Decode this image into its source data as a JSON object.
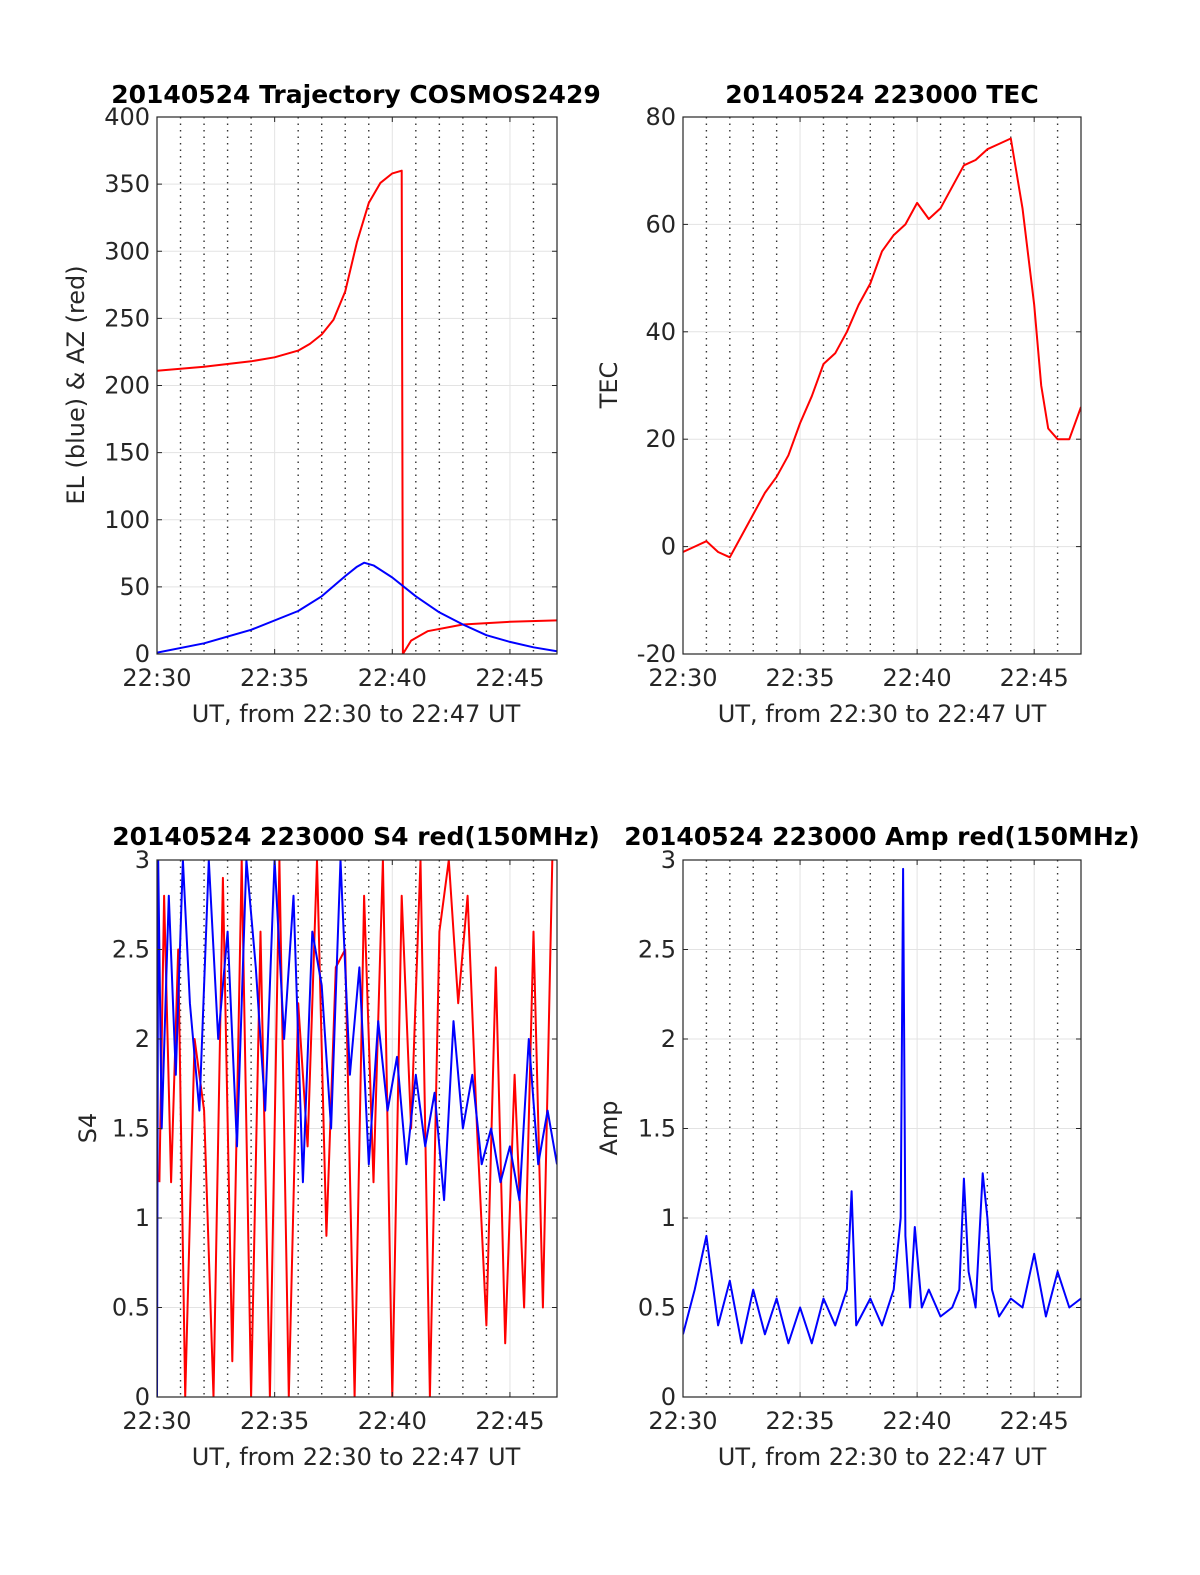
{
  "figure": {
    "panels": [
      {
        "title": "20140524 Trajectory COSMOS2429",
        "xlabel": "UT, from 22:30 to 22:47 UT",
        "ylabel": "EL (blue) & AZ (red)"
      },
      {
        "title": "20140524 223000 TEC",
        "xlabel": "UT, from 22:30 to 22:47 UT",
        "ylabel": "TEC"
      },
      {
        "title": "20140524 223000 S4 red(150MHz)",
        "xlabel": "UT, from 22:30 to 22:47 UT",
        "ylabel": "S4"
      },
      {
        "title": "20140524 223000 Amp red(150MHz)",
        "xlabel": "UT, from 22:30 to 22:47 UT",
        "ylabel": "Amp"
      }
    ]
  },
  "chart_data": [
    {
      "type": "line",
      "title": "20140524 Trajectory COSMOS2429",
      "xlabel": "UT, from 22:30 to 22:47 UT",
      "ylabel": "EL (blue) & AZ (red)",
      "xlim": [
        0,
        17
      ],
      "ylim": [
        0,
        400
      ],
      "xticks": [
        0,
        5,
        10,
        15
      ],
      "xticklabels": [
        "22:30",
        "22:35",
        "22:40",
        "22:45"
      ],
      "yticks": [
        0,
        50,
        100,
        150,
        200,
        250,
        300,
        350,
        400
      ],
      "grid": true,
      "series": [
        {
          "color": "#ff0000",
          "x": [
            0,
            2,
            4,
            5,
            6,
            6.5,
            7,
            7.5,
            8,
            8.5,
            9,
            9.5,
            10,
            10.4,
            10.45,
            10.8,
            11.5,
            13,
            15,
            17
          ],
          "y": [
            211,
            214,
            218,
            221,
            226,
            231,
            238,
            249,
            270,
            307,
            336,
            351,
            358,
            360,
            0,
            10,
            17,
            22,
            24,
            25
          ]
        },
        {
          "color": "#0000ff",
          "x": [
            0,
            2,
            4,
            6,
            7,
            8,
            8.5,
            8.8,
            9.2,
            10,
            11,
            12,
            13,
            14,
            15,
            16,
            17
          ],
          "y": [
            1,
            8,
            18,
            32,
            43,
            58,
            65,
            68,
            66,
            57,
            43,
            31,
            22,
            14,
            9,
            5,
            2
          ]
        }
      ]
    },
    {
      "type": "line",
      "title": "20140524 223000 TEC",
      "xlabel": "UT, from 22:30 to 22:47 UT",
      "ylabel": "TEC",
      "xlim": [
        0,
        17
      ],
      "ylim": [
        -20,
        80
      ],
      "xticks": [
        0,
        5,
        10,
        15
      ],
      "xticklabels": [
        "22:30",
        "22:35",
        "22:40",
        "22:45"
      ],
      "yticks": [
        -20,
        0,
        20,
        40,
        60,
        80
      ],
      "grid": true,
      "series": [
        {
          "color": "#ff0000",
          "x": [
            0,
            0.5,
            1,
            1.5,
            2,
            2.5,
            3,
            3.5,
            4,
            4.5,
            5,
            5.5,
            6,
            6.5,
            7,
            7.5,
            8,
            8.5,
            9,
            9.5,
            10,
            10.5,
            11,
            11.5,
            12,
            12.5,
            13,
            13.5,
            14,
            14.5,
            15,
            15.3,
            15.6,
            16,
            16.5,
            17
          ],
          "y": [
            -1,
            0,
            1,
            -1,
            -2,
            2,
            6,
            10,
            13,
            17,
            23,
            28,
            34,
            36,
            40,
            45,
            49,
            55,
            58,
            60,
            64,
            61,
            63,
            67,
            71,
            72,
            74,
            75,
            76,
            63,
            45,
            30,
            22,
            20,
            20,
            26
          ]
        }
      ]
    },
    {
      "type": "line",
      "title": "20140524 223000 S4 red(150MHz)",
      "xlabel": "UT, from 22:30 to 22:47 UT",
      "ylabel": "S4",
      "xlim": [
        0,
        17
      ],
      "ylim": [
        0,
        3
      ],
      "xticks": [
        0,
        5,
        10,
        15
      ],
      "xticklabels": [
        "22:30",
        "22:35",
        "22:40",
        "22:45"
      ],
      "yticks": [
        0,
        0.5,
        1,
        1.5,
        2,
        2.5,
        3
      ],
      "grid": true,
      "series": [
        {
          "color": "#ff0000",
          "x": [
            0.1,
            0.3,
            0.6,
            0.9,
            1.2,
            1.6,
            2.0,
            2.4,
            2.8,
            3.2,
            3.6,
            4.0,
            4.4,
            4.8,
            5.2,
            5.6,
            6.0,
            6.4,
            6.8,
            7.2,
            7.6,
            8.0,
            8.4,
            8.8,
            9.2,
            9.6,
            10.0,
            10.4,
            10.8,
            11.2,
            11.6,
            12.0,
            12.4,
            12.8,
            13.2,
            13.6,
            14.0,
            14.4,
            14.8,
            15.2,
            15.6,
            16.0,
            16.4,
            16.8
          ],
          "y": [
            1.2,
            2.8,
            1.2,
            2.5,
            0,
            2.0,
            1.6,
            0,
            2.9,
            0.2,
            3.0,
            0,
            2.6,
            0,
            3.0,
            0,
            2.2,
            1.4,
            3.0,
            0.9,
            2.4,
            2.5,
            0,
            2.8,
            1.2,
            3.0,
            0,
            2.8,
            1.5,
            3.0,
            0,
            2.6,
            3.0,
            2.2,
            2.8,
            1.5,
            0.4,
            2.4,
            0.3,
            1.8,
            0.5,
            2.6,
            0.5,
            3.0
          ]
        },
        {
          "color": "#0000ff",
          "x": [
            0,
            0.05,
            0.2,
            0.5,
            0.8,
            1.1,
            1.4,
            1.8,
            2.2,
            2.6,
            3.0,
            3.4,
            3.8,
            4.2,
            4.6,
            5.0,
            5.4,
            5.8,
            6.2,
            6.6,
            7.0,
            7.4,
            7.8,
            8.2,
            8.6,
            9.0,
            9.4,
            9.8,
            10.2,
            10.6,
            11.0,
            11.4,
            11.8,
            12.2,
            12.6,
            13.0,
            13.4,
            13.8,
            14.2,
            14.6,
            15.0,
            15.4,
            15.8,
            16.2,
            16.6,
            17.0
          ],
          "y": [
            0,
            3.0,
            1.5,
            2.8,
            1.8,
            3.0,
            2.2,
            1.6,
            3.0,
            2.0,
            2.6,
            1.4,
            3.0,
            2.4,
            1.6,
            3.0,
            2.0,
            2.8,
            1.2,
            2.6,
            2.3,
            1.5,
            3.0,
            1.8,
            2.4,
            1.3,
            2.1,
            1.6,
            1.9,
            1.3,
            1.8,
            1.4,
            1.7,
            1.1,
            2.1,
            1.5,
            1.8,
            1.3,
            1.5,
            1.2,
            1.4,
            1.1,
            2.0,
            1.3,
            1.6,
            1.3
          ]
        }
      ]
    },
    {
      "type": "line",
      "title": "20140524 223000 Amp red(150MHz)",
      "xlabel": "UT, from 22:30 to 22:47 UT",
      "ylabel": "Amp",
      "xlim": [
        0,
        17
      ],
      "ylim": [
        0,
        3
      ],
      "xticks": [
        0,
        5,
        10,
        15
      ],
      "xticklabels": [
        "22:30",
        "22:35",
        "22:40",
        "22:45"
      ],
      "yticks": [
        0,
        0.5,
        1,
        1.5,
        2,
        2.5,
        3
      ],
      "grid": true,
      "series": [
        {
          "color": "#0000ff",
          "x": [
            0,
            0.5,
            1.0,
            1.5,
            2.0,
            2.5,
            3.0,
            3.5,
            4.0,
            4.5,
            5.0,
            5.5,
            6.0,
            6.5,
            7.0,
            7.2,
            7.4,
            7.6,
            8.0,
            8.5,
            9.0,
            9.3,
            9.4,
            9.5,
            9.7,
            9.9,
            10.2,
            10.5,
            11.0,
            11.5,
            11.8,
            12.0,
            12.2,
            12.5,
            12.8,
            13.0,
            13.2,
            13.5,
            14.0,
            14.5,
            15.0,
            15.5,
            16.0,
            16.5,
            17.0
          ],
          "y": [
            0.35,
            0.6,
            0.9,
            0.4,
            0.65,
            0.3,
            0.6,
            0.35,
            0.55,
            0.3,
            0.5,
            0.3,
            0.55,
            0.4,
            0.6,
            1.15,
            0.4,
            0.45,
            0.55,
            0.4,
            0.6,
            1.0,
            2.95,
            0.9,
            0.5,
            0.95,
            0.5,
            0.6,
            0.45,
            0.5,
            0.6,
            1.22,
            0.7,
            0.5,
            1.25,
            1.0,
            0.6,
            0.45,
            0.55,
            0.5,
            0.8,
            0.45,
            0.7,
            0.5,
            0.55
          ]
        }
      ]
    }
  ]
}
